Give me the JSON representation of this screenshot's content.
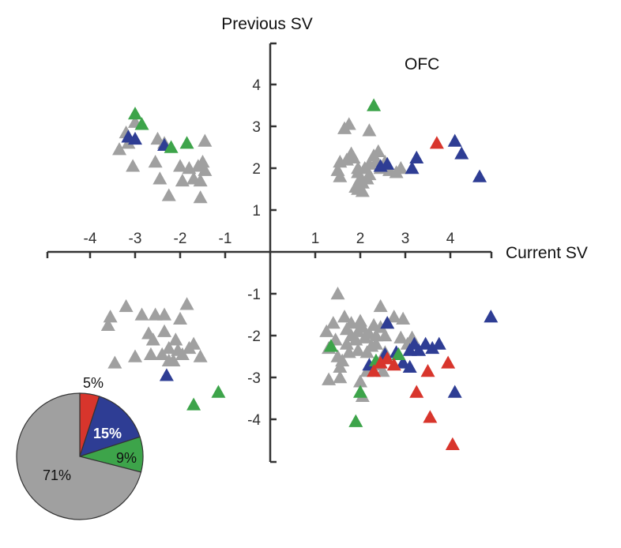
{
  "chart_data": {
    "type": "scatter",
    "title": "",
    "region_label": "OFC",
    "xlabel": "Current SV",
    "ylabel": "Previous SV",
    "xlim": [
      -4.9,
      4.9
    ],
    "ylim": [
      -4.9,
      5.0
    ],
    "x_ticks": [
      -4,
      -3,
      -2,
      -1,
      1,
      2,
      3,
      4
    ],
    "y_ticks": [
      -4,
      -3,
      -2,
      -1,
      1,
      2,
      3,
      4
    ],
    "x_tick_labels": [
      "-4",
      "-3",
      "-2",
      "-1",
      "1",
      "2",
      "3",
      "4"
    ],
    "y_tick_labels": [
      "-4",
      "-3",
      "-2",
      "-1",
      "1",
      "2",
      "3",
      "4"
    ],
    "grid": false,
    "colors": {
      "gray": "#a0a0a0",
      "blue": "#2e3d94",
      "green": "#3da44a",
      "red": "#d8352c",
      "axis": "#333333"
    },
    "series": [
      {
        "color": "gray",
        "points": [
          [
            -3.0,
            3.1
          ],
          [
            -3.2,
            2.85
          ],
          [
            -3.15,
            2.6
          ],
          [
            -3.35,
            2.45
          ],
          [
            -3.05,
            2.05
          ],
          [
            -2.5,
            2.7
          ],
          [
            -2.35,
            2.6
          ],
          [
            -2.55,
            2.15
          ],
          [
            -2.45,
            1.75
          ],
          [
            -2.25,
            1.35
          ],
          [
            -2.0,
            2.05
          ],
          [
            -1.95,
            1.7
          ],
          [
            -1.8,
            2.0
          ],
          [
            -1.7,
            1.75
          ],
          [
            -1.6,
            2.05
          ],
          [
            -1.55,
            1.7
          ],
          [
            -1.5,
            2.15
          ],
          [
            -1.45,
            1.95
          ],
          [
            -1.55,
            1.3
          ],
          [
            -1.45,
            2.65
          ],
          [
            1.55,
            2.15
          ],
          [
            1.5,
            1.95
          ],
          [
            1.55,
            1.8
          ],
          [
            1.65,
            2.95
          ],
          [
            1.75,
            3.05
          ],
          [
            1.7,
            2.2
          ],
          [
            1.8,
            2.35
          ],
          [
            1.85,
            2.25
          ],
          [
            1.95,
            2.0
          ],
          [
            1.9,
            1.55
          ],
          [
            1.95,
            1.9
          ],
          [
            2.0,
            1.75
          ],
          [
            2.05,
            1.65
          ],
          [
            2.1,
            2.0
          ],
          [
            2.05,
            1.45
          ],
          [
            2.15,
            1.75
          ],
          [
            2.2,
            1.85
          ],
          [
            2.2,
            2.1
          ],
          [
            2.3,
            2.3
          ],
          [
            2.35,
            2.15
          ],
          [
            2.4,
            2.4
          ],
          [
            2.45,
            2.0
          ],
          [
            2.2,
            2.9
          ],
          [
            2.65,
            1.95
          ],
          [
            2.8,
            1.9
          ],
          [
            2.9,
            2.0
          ],
          [
            2.55,
            2.15
          ],
          [
            1.95,
            1.5
          ],
          [
            -3.6,
            -1.75
          ],
          [
            -3.55,
            -1.55
          ],
          [
            -3.2,
            -1.3
          ],
          [
            -3.45,
            -2.65
          ],
          [
            -3.0,
            -2.5
          ],
          [
            -2.85,
            -1.5
          ],
          [
            -2.55,
            -1.5
          ],
          [
            -2.7,
            -1.95
          ],
          [
            -2.6,
            -2.1
          ],
          [
            -2.35,
            -1.5
          ],
          [
            -2.35,
            -1.9
          ],
          [
            -2.25,
            -2.3
          ],
          [
            -2.4,
            -2.45
          ],
          [
            -2.1,
            -2.1
          ],
          [
            -2.15,
            -2.6
          ],
          [
            -2.25,
            -2.6
          ],
          [
            -2.0,
            -1.6
          ],
          [
            -1.85,
            -1.25
          ],
          [
            -1.8,
            -2.3
          ],
          [
            -1.95,
            -2.45
          ],
          [
            -1.7,
            -2.2
          ],
          [
            -1.55,
            -2.5
          ],
          [
            -2.05,
            -2.35
          ],
          [
            -2.65,
            -2.45
          ],
          [
            1.5,
            -1.0
          ],
          [
            1.25,
            -1.9
          ],
          [
            1.3,
            -2.3
          ],
          [
            1.3,
            -3.05
          ],
          [
            1.4,
            -1.7
          ],
          [
            1.45,
            -2.1
          ],
          [
            1.5,
            -2.5
          ],
          [
            1.55,
            -2.75
          ],
          [
            1.65,
            -1.55
          ],
          [
            1.7,
            -1.85
          ],
          [
            1.7,
            -2.2
          ],
          [
            1.75,
            -2.4
          ],
          [
            1.8,
            -1.7
          ],
          [
            1.8,
            -2.0
          ],
          [
            1.9,
            -2.1
          ],
          [
            1.95,
            -2.35
          ],
          [
            1.95,
            -1.9
          ],
          [
            2.0,
            -1.65
          ],
          [
            2.0,
            -3.1
          ],
          [
            2.05,
            -1.8
          ],
          [
            2.1,
            -2.05
          ],
          [
            2.15,
            -2.4
          ],
          [
            2.15,
            -2.85
          ],
          [
            2.2,
            -1.95
          ],
          [
            2.25,
            -2.25
          ],
          [
            2.3,
            -1.75
          ],
          [
            2.35,
            -2.2
          ],
          [
            2.4,
            -2.7
          ],
          [
            2.45,
            -1.3
          ],
          [
            2.45,
            -1.8
          ],
          [
            2.55,
            -2.0
          ],
          [
            2.55,
            -2.4
          ],
          [
            2.6,
            -1.7
          ],
          [
            2.75,
            -1.55
          ],
          [
            2.95,
            -1.6
          ],
          [
            2.9,
            -2.05
          ],
          [
            3.05,
            -2.2
          ],
          [
            3.15,
            -2.05
          ],
          [
            2.5,
            -2.85
          ],
          [
            2.05,
            -3.45
          ],
          [
            1.6,
            -2.6
          ],
          [
            1.55,
            -3.0
          ],
          [
            2.35,
            -2.0
          ]
        ]
      },
      {
        "color": "blue",
        "points": [
          [
            -3.15,
            2.75
          ],
          [
            -3.0,
            2.7
          ],
          [
            -2.35,
            2.55
          ],
          [
            2.45,
            2.05
          ],
          [
            2.6,
            2.1
          ],
          [
            3.15,
            2.0
          ],
          [
            3.25,
            2.25
          ],
          [
            4.1,
            2.65
          ],
          [
            4.25,
            2.35
          ],
          [
            4.65,
            1.8
          ],
          [
            -2.3,
            -2.95
          ],
          [
            2.2,
            -2.7
          ],
          [
            2.6,
            -1.7
          ],
          [
            2.55,
            -2.45
          ],
          [
            2.8,
            -2.4
          ],
          [
            2.95,
            -2.65
          ],
          [
            3.1,
            -2.35
          ],
          [
            3.2,
            -2.2
          ],
          [
            3.3,
            -2.35
          ],
          [
            3.45,
            -2.2
          ],
          [
            3.6,
            -2.3
          ],
          [
            3.75,
            -2.2
          ],
          [
            3.1,
            -2.75
          ],
          [
            4.1,
            -3.35
          ],
          [
            4.9,
            -1.55
          ]
        ]
      },
      {
        "color": "green",
        "points": [
          [
            -3.0,
            3.3
          ],
          [
            -2.85,
            3.05
          ],
          [
            -2.2,
            2.5
          ],
          [
            -1.85,
            2.6
          ],
          [
            2.3,
            3.5
          ],
          [
            1.35,
            -2.25
          ],
          [
            2.35,
            -2.6
          ],
          [
            2.85,
            -2.45
          ],
          [
            1.9,
            -4.05
          ],
          [
            2.0,
            -3.35
          ],
          [
            -1.7,
            -3.65
          ],
          [
            -1.15,
            -3.35
          ]
        ]
      },
      {
        "color": "red",
        "points": [
          [
            3.7,
            2.6
          ],
          [
            2.3,
            -2.85
          ],
          [
            2.6,
            -2.55
          ],
          [
            2.75,
            -2.7
          ],
          [
            3.5,
            -2.85
          ],
          [
            3.95,
            -2.65
          ],
          [
            3.25,
            -3.35
          ],
          [
            3.55,
            -3.95
          ],
          [
            4.05,
            -4.6
          ],
          [
            2.45,
            -2.65
          ]
        ]
      }
    ],
    "pie": {
      "type": "pie",
      "slices": [
        {
          "label": "5%",
          "value": 5,
          "color": "red"
        },
        {
          "label": "15%",
          "value": 15,
          "color": "blue"
        },
        {
          "label": "9%",
          "value": 9,
          "color": "green"
        },
        {
          "label": "71%",
          "value": 71,
          "color": "gray"
        }
      ]
    }
  }
}
